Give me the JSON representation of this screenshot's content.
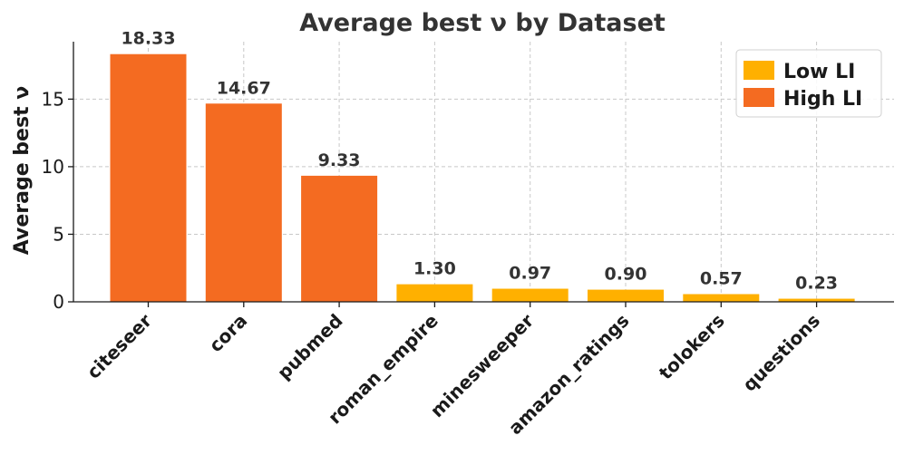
{
  "chart_data": {
    "type": "bar",
    "title": "Average best ν by Dataset",
    "xlabel": "",
    "ylabel": "Average best ν",
    "categories": [
      "citeseer",
      "cora",
      "pubmed",
      "roman_empire",
      "minesweeper",
      "amazon_ratings",
      "tolokers",
      "questions"
    ],
    "values": [
      18.33,
      14.67,
      9.33,
      1.3,
      0.97,
      0.9,
      0.57,
      0.23
    ],
    "value_labels": [
      "18.33",
      "14.67",
      "9.33",
      "1.30",
      "0.97",
      "0.90",
      "0.57",
      "0.23"
    ],
    "groups": [
      "High LI",
      "High LI",
      "High LI",
      "Low LI",
      "Low LI",
      "Low LI",
      "Low LI",
      "Low LI"
    ],
    "ylim": [
      0,
      19.25
    ],
    "yticks": [
      0,
      5,
      10,
      15
    ],
    "grid": true,
    "legend": {
      "placement": "top-right",
      "entries": [
        {
          "name": "Low LI",
          "color": "#FFB000"
        },
        {
          "name": "High LI",
          "color": "#F46B21"
        }
      ]
    },
    "colors": {
      "Low LI": "#FFB000",
      "High LI": "#F46B21"
    }
  }
}
